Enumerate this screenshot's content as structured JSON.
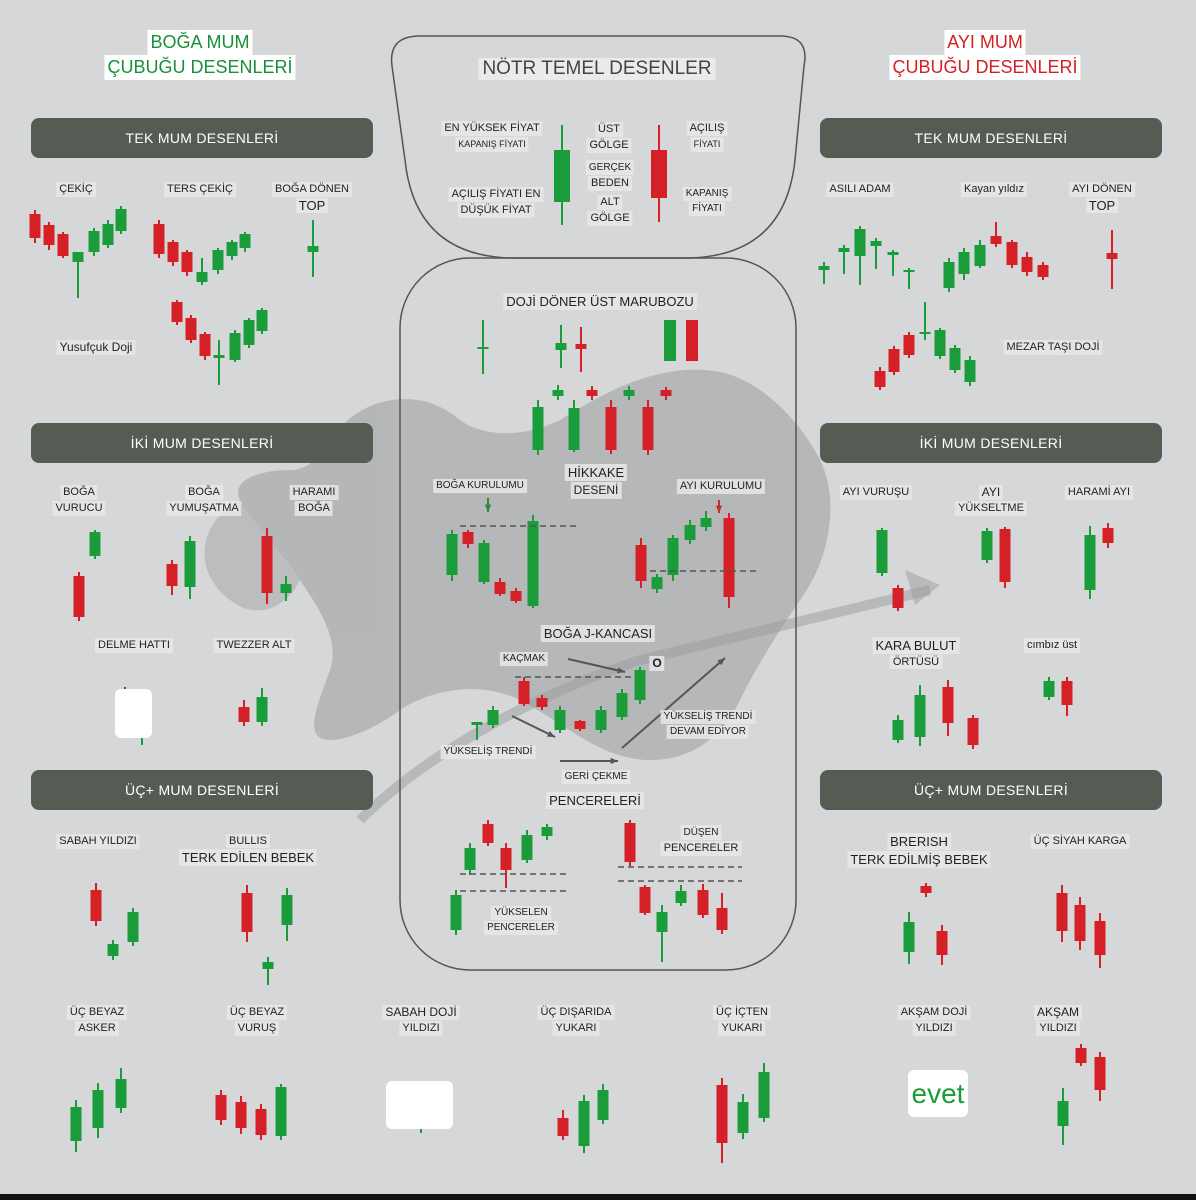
{
  "bull": {
    "title_line1": "BOĞA MUM",
    "title_line2": "ÇUBUĞU DESENLERİ",
    "sections": {
      "single": "TEK MUM DESENLERİ",
      "double": "İKİ MUM DESENLERİ",
      "triple": "ÜÇ+ MUM DESENLERİ"
    },
    "single": {
      "hammer": "ÇEKİÇ",
      "inverted_hammer": "TERS ÇEKİÇ",
      "spinning_top_l1": "BOĞA DÖNEN",
      "spinning_top_l2": "TOP",
      "dragonfly": "Yusufçuk Doji"
    },
    "double": {
      "engulfing_l1": "BOĞA",
      "engulfing_l2": "VURUCU",
      "softening_l1": "BOĞA",
      "softening_l2": "YUMUŞATMA",
      "harami_l1": "HARAMI",
      "harami_l2": "BOĞA",
      "piercing": "DELME HATTI",
      "tweezer": "TWEZZER ALT"
    },
    "triple": {
      "morning_star": "SABAH YILDIZI",
      "abandoned_l1": "BULLIS",
      "abandoned_l2": "TERK EDİLEN BEBEK",
      "three_soldiers_l1": "ÜÇ BEYAZ",
      "three_soldiers_l2": "ASKER",
      "three_strike_l1": "ÜÇ BEYAZ",
      "three_strike_l2": "VURUŞ",
      "morning_doji_l1": "SABAH DOJİ",
      "morning_doji_l2": "YILDIZI",
      "outside_up_l1": "ÜÇ DIŞARIDA",
      "outside_up_l2": "YUKARI",
      "inside_up_l1": "ÜÇ İÇTEN",
      "inside_up_l2": "YUKARI"
    }
  },
  "bear": {
    "title_line1": "AYI MUM",
    "title_line2": "ÇUBUĞU DESENLERİ",
    "sections": {
      "single": "TEK MUM DESENLERİ",
      "double": "İKİ MUM DESENLERİ",
      "triple": "ÜÇ+ MUM DESENLERİ"
    },
    "single": {
      "hanging_man": "ASILI ADAM",
      "shooting_star": "Kayan yıldız",
      "spinning_top_l1": "AYI DÖNEN",
      "spinning_top_l2": "TOP",
      "gravestone": "MEZAR TAŞI DOJİ"
    },
    "double": {
      "engulfing": "AYI VURUŞU",
      "rise_l1": "AYI",
      "rise_l2": "YÜKSELTME",
      "harami": "HARAMİ AYI",
      "dark_cloud_l1": "KARA BULUT",
      "dark_cloud_l2": "ÖRTÜSÜ",
      "tweezer_top": "cımbız üst"
    },
    "triple": {
      "abandoned_l1": "BRERISH",
      "abandoned_l2": "TERK EDİLMİŞ BEBEK",
      "three_crows": "ÜÇ SİYAH KARGA",
      "evening_doji_l1": "AKŞAM DOJİ",
      "evening_doji_l2": "YILDIZI",
      "evening_star_l1": "AKŞAM",
      "evening_star_l2": "YILDIZI",
      "evet": "evet"
    }
  },
  "neutral": {
    "title": "NÖTR TEMEL DESENLER",
    "high_price": "EN YÜKSEK FİYAT",
    "close_price_small": "KAPANIŞ FİYATI",
    "open_low_l1": "AÇILIŞ FİYATI EN",
    "open_low_l2": "DÜŞÜK FİYAT",
    "upper_shadow_l1": "ÜST",
    "upper_shadow_l2": "GÖLGE",
    "real_body_l1": "GERÇEK",
    "real_body_l2": "BEDEN",
    "lower_shadow_l1": "ALT",
    "lower_shadow_l2": "GÖLGE",
    "open_l1": "AÇILIŞ",
    "open_l2": "FİYATI",
    "close_l1": "KAPANIŞ",
    "close_l2": "FİYATI",
    "doji_row": "DOJİ DÖNER ÜST MARUBOZU",
    "hikkake_l1": "HİKKAKE",
    "hikkake_l2": "DESENİ",
    "bull_setup": "BOĞA KURULUMU",
    "bear_setup": "AYI KURULUMU",
    "j_hook": "BOĞA J-KANCASI",
    "escape": "KAÇMAK",
    "o_mark": "O",
    "uptrend": "YÜKSELİŞ TRENDİ",
    "uptrend_cont_l1": "YÜKSELİŞ TRENDİ",
    "uptrend_cont_l2": "DEVAM EDİYOR",
    "pullback": "GERİ ÇEKME",
    "windows": "PENCERELERİ",
    "rising_windows_l1": "YÜKSELEN",
    "rising_windows_l2": "PENCERELER",
    "falling_windows_l1": "DÜŞEN",
    "falling_windows_l2": "PENCERELER"
  },
  "colors": {
    "bull": "#1a9c3a",
    "bear": "#d42026",
    "section": "#545c54",
    "background": "#d6d7d8"
  }
}
